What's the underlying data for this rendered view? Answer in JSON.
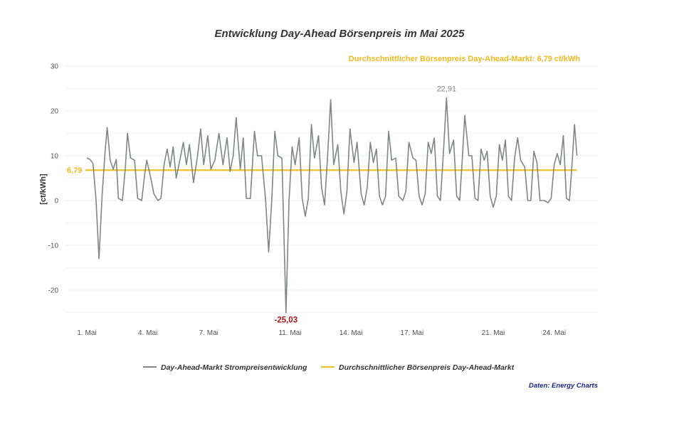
{
  "chart_data": {
    "type": "line",
    "title": "Entwicklung Day-Ahead Börsenpreis im Mai 2025",
    "ylabel": "[ct/kWh]",
    "xlabel": "",
    "ylim": [
      -27,
      31
    ],
    "yticks": [
      30,
      20,
      10,
      0,
      -10,
      -20
    ],
    "x_tick_labels": [
      {
        "day": 1,
        "label": "1. Mai"
      },
      {
        "day": 4,
        "label": "4. Mai"
      },
      {
        "day": 7,
        "label": "7. Mai"
      },
      {
        "day": 11,
        "label": "11. Mai"
      },
      {
        "day": 14,
        "label": "14. Mai"
      },
      {
        "day": 17,
        "label": "17. Mai"
      },
      {
        "day": 21,
        "label": "21. Mai"
      },
      {
        "day": 24,
        "label": "24. Mai"
      }
    ],
    "grid": true,
    "legend_position": "bottom",
    "series": [
      {
        "name": "Day-Ahead-Markt Strompreisentwicklung",
        "color": "#7f8783",
        "x_unit": "day of May 2025",
        "points": [
          [
            1.0,
            9.5
          ],
          [
            1.15,
            9.2
          ],
          [
            1.3,
            8.3
          ],
          [
            1.45,
            0.5
          ],
          [
            1.6,
            -13.0
          ],
          [
            1.75,
            1.0
          ],
          [
            1.9,
            11.0
          ],
          [
            2.0,
            16.3
          ],
          [
            2.15,
            9.0
          ],
          [
            2.3,
            7.0
          ],
          [
            2.45,
            9.2
          ],
          [
            2.55,
            0.5
          ],
          [
            2.75,
            0.0
          ],
          [
            2.9,
            7.5
          ],
          [
            3.0,
            15.0
          ],
          [
            3.15,
            9.5
          ],
          [
            3.35,
            9.0
          ],
          [
            3.5,
            0.5
          ],
          [
            3.7,
            0.0
          ],
          [
            3.85,
            6.0
          ],
          [
            3.95,
            9.0
          ],
          [
            4.15,
            5.0
          ],
          [
            4.3,
            1.5
          ],
          [
            4.5,
            0.0
          ],
          [
            4.65,
            0.5
          ],
          [
            4.8,
            8.0
          ],
          [
            4.95,
            11.5
          ],
          [
            5.1,
            7.5
          ],
          [
            5.25,
            12.0
          ],
          [
            5.4,
            5.0
          ],
          [
            5.6,
            9.5
          ],
          [
            5.75,
            13.0
          ],
          [
            5.9,
            8.0
          ],
          [
            6.05,
            12.5
          ],
          [
            6.25,
            4.0
          ],
          [
            6.45,
            10.0
          ],
          [
            6.6,
            16.0
          ],
          [
            6.75,
            8.0
          ],
          [
            6.95,
            14.5
          ],
          [
            7.1,
            7.0
          ],
          [
            7.3,
            9.0
          ],
          [
            7.5,
            15.0
          ],
          [
            7.7,
            8.0
          ],
          [
            7.9,
            14.0
          ],
          [
            8.05,
            6.5
          ],
          [
            8.2,
            10.0
          ],
          [
            8.35,
            18.5
          ],
          [
            8.55,
            7.0
          ],
          [
            8.7,
            14.0
          ],
          [
            8.85,
            0.5
          ],
          [
            9.05,
            0.5
          ],
          [
            9.25,
            15.5
          ],
          [
            9.4,
            10.0
          ],
          [
            9.6,
            10.0
          ],
          [
            9.8,
            0.0
          ],
          [
            9.95,
            -11.5
          ],
          [
            10.1,
            0.0
          ],
          [
            10.25,
            15.5
          ],
          [
            10.4,
            10.0
          ],
          [
            10.6,
            9.5
          ],
          [
            10.8,
            -25.03
          ],
          [
            10.95,
            0.0
          ],
          [
            11.1,
            12.0
          ],
          [
            11.25,
            8.0
          ],
          [
            11.45,
            14.0
          ],
          [
            11.6,
            0.5
          ],
          [
            11.75,
            -3.5
          ],
          [
            11.9,
            0.5
          ],
          [
            12.05,
            17.0
          ],
          [
            12.2,
            9.5
          ],
          [
            12.4,
            14.5
          ],
          [
            12.55,
            3.0
          ],
          [
            12.7,
            -1.0
          ],
          [
            12.85,
            10.0
          ],
          [
            13.0,
            22.5
          ],
          [
            13.15,
            8.0
          ],
          [
            13.35,
            12.5
          ],
          [
            13.5,
            2.0
          ],
          [
            13.65,
            -3.0
          ],
          [
            13.8,
            2.0
          ],
          [
            13.95,
            16.0
          ],
          [
            14.15,
            8.5
          ],
          [
            14.3,
            13.0
          ],
          [
            14.5,
            1.5
          ],
          [
            14.65,
            -1.0
          ],
          [
            14.8,
            3.0
          ],
          [
            14.95,
            13.0
          ],
          [
            15.1,
            8.5
          ],
          [
            15.25,
            11.5
          ],
          [
            15.4,
            1.0
          ],
          [
            15.55,
            -1.0
          ],
          [
            15.7,
            1.0
          ],
          [
            15.85,
            15.5
          ],
          [
            16.0,
            9.0
          ],
          [
            16.2,
            9.5
          ],
          [
            16.35,
            1.0
          ],
          [
            16.55,
            0.0
          ],
          [
            16.7,
            2.0
          ],
          [
            16.85,
            13.0
          ],
          [
            17.05,
            9.5
          ],
          [
            17.2,
            9.0
          ],
          [
            17.35,
            1.0
          ],
          [
            17.5,
            -1.0
          ],
          [
            17.65,
            1.5
          ],
          [
            17.8,
            13.0
          ],
          [
            17.95,
            10.5
          ],
          [
            18.1,
            14.0
          ],
          [
            18.25,
            1.0
          ],
          [
            18.4,
            0.0
          ],
          [
            18.55,
            11.0
          ],
          [
            18.7,
            22.91
          ],
          [
            18.85,
            10.5
          ],
          [
            19.05,
            13.5
          ],
          [
            19.2,
            1.0
          ],
          [
            19.35,
            0.0
          ],
          [
            19.5,
            11.0
          ],
          [
            19.6,
            19.0
          ],
          [
            19.8,
            10.0
          ],
          [
            19.95,
            10.0
          ],
          [
            20.1,
            0.5
          ],
          [
            20.25,
            0.0
          ],
          [
            20.4,
            11.5
          ],
          [
            20.55,
            9.0
          ],
          [
            20.7,
            11.0
          ],
          [
            20.85,
            1.0
          ],
          [
            21.0,
            -1.5
          ],
          [
            21.15,
            1.0
          ],
          [
            21.3,
            12.5
          ],
          [
            21.45,
            9.0
          ],
          [
            21.6,
            13.5
          ],
          [
            21.75,
            1.0
          ],
          [
            21.9,
            0.0
          ],
          [
            22.05,
            9.5
          ],
          [
            22.2,
            14.0
          ],
          [
            22.35,
            9.0
          ],
          [
            22.55,
            7.5
          ],
          [
            22.7,
            0.0
          ],
          [
            22.85,
            0.0
          ],
          [
            23.0,
            11.0
          ],
          [
            23.15,
            8.5
          ],
          [
            23.3,
            0.0
          ],
          [
            23.5,
            0.0
          ],
          [
            23.7,
            -0.5
          ],
          [
            23.85,
            0.5
          ],
          [
            24.0,
            8.0
          ],
          [
            24.15,
            10.5
          ],
          [
            24.3,
            8.0
          ],
          [
            24.45,
            14.5
          ],
          [
            24.6,
            0.5
          ],
          [
            24.75,
            0.0
          ],
          [
            24.9,
            9.5
          ],
          [
            25.0,
            17.0
          ],
          [
            25.12,
            10.0
          ]
        ]
      },
      {
        "name": "Durchschnittlicher Börsenpreis Day-Ahead-Markt",
        "color": "#e8c22a",
        "constant_value": 6.79
      }
    ],
    "annotations": {
      "average_text": "Durchschnittlicher Börsenpreis Day-Ahead-Markt: 6,79 ct/kWh",
      "average_label": "6,79",
      "max_label": "22,91",
      "max_value": 22.91,
      "min_label": "-25,03",
      "min_value": -25.03
    },
    "source": "Daten: Energy Charts",
    "colors": {
      "price_line": "#7f8783",
      "average_line": "#e8c22a",
      "average_text": "#f2b81c",
      "min_label": "#b01515",
      "source_text": "#1a2790",
      "grid": "#ececec"
    }
  }
}
